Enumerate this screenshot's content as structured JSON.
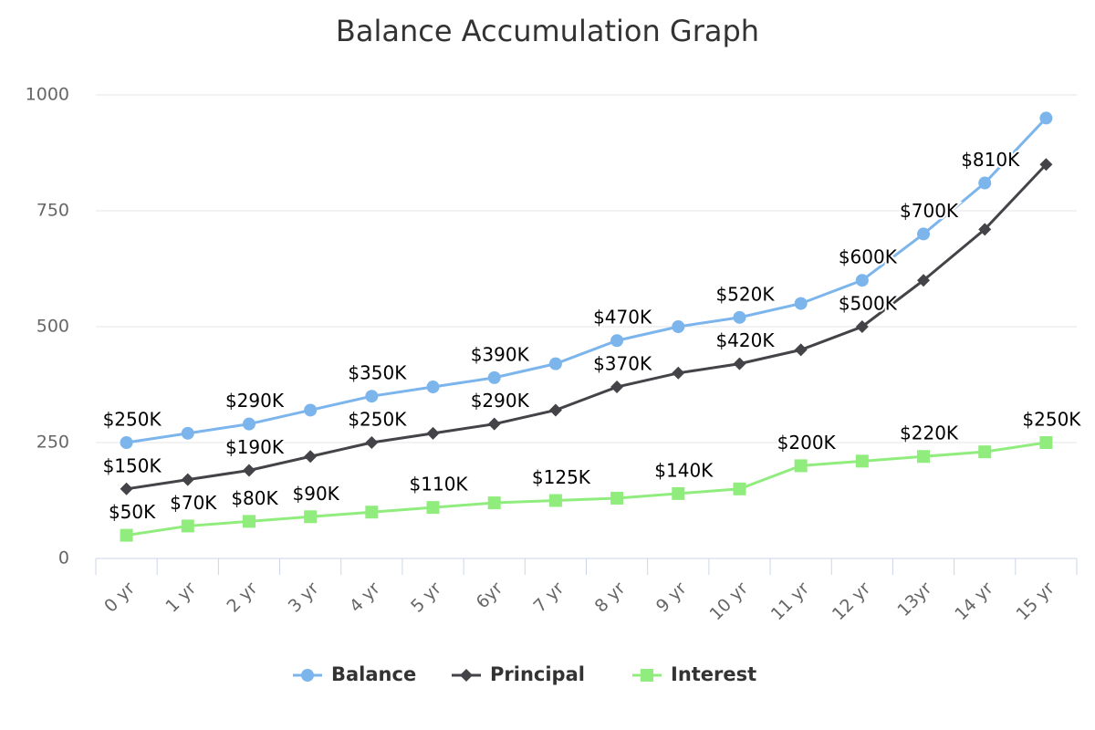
{
  "chart_data": {
    "type": "line",
    "title": "Balance Accumulation Graph",
    "categories": [
      "0 yr",
      "1 yr",
      "2 yr",
      "3 yr",
      "4 yr",
      "5 yr",
      "6yr",
      "7 yr",
      "8 yr",
      "9 yr",
      "10 yr",
      "11 yr",
      "12 yr",
      "13yr",
      "14 yr",
      "15 yr"
    ],
    "series": [
      {
        "name": "Balance",
        "color": "#7cb5ec",
        "marker": "circle",
        "values": [
          250,
          270,
          290,
          320,
          350,
          370,
          390,
          420,
          470,
          500,
          520,
          550,
          600,
          700,
          810,
          950
        ],
        "value_labels": [
          "$250K",
          null,
          "$290K",
          null,
          "$350K",
          null,
          "$390K",
          null,
          "$470K",
          null,
          "$520K",
          null,
          "$600K",
          "$700K",
          "$810K",
          null
        ]
      },
      {
        "name": "Principal",
        "color": "#434348",
        "marker": "diamond",
        "values": [
          150,
          170,
          190,
          220,
          250,
          270,
          290,
          320,
          370,
          400,
          420,
          450,
          500,
          600,
          710,
          850
        ],
        "value_labels": [
          "$150K",
          null,
          "$190K",
          null,
          "$250K",
          null,
          "$290K",
          null,
          "$370K",
          null,
          "$420K",
          null,
          "$500K",
          null,
          null,
          null
        ]
      },
      {
        "name": "Interest",
        "color": "#90ed7d",
        "marker": "square",
        "values": [
          50,
          70,
          80,
          90,
          100,
          110,
          120,
          125,
          130,
          140,
          150,
          200,
          210,
          220,
          230,
          250
        ],
        "value_labels": [
          "$50K",
          "$70K",
          "$80K",
          "$90K",
          null,
          "$110K",
          null,
          "$125K",
          null,
          "$140K",
          null,
          "$200K",
          null,
          "$220K",
          null,
          "$250K"
        ]
      }
    ],
    "ylim": [
      0,
      1000
    ],
    "yticks": [
      0,
      250,
      500,
      750,
      1000
    ],
    "grid": true,
    "legend": "bottom"
  }
}
